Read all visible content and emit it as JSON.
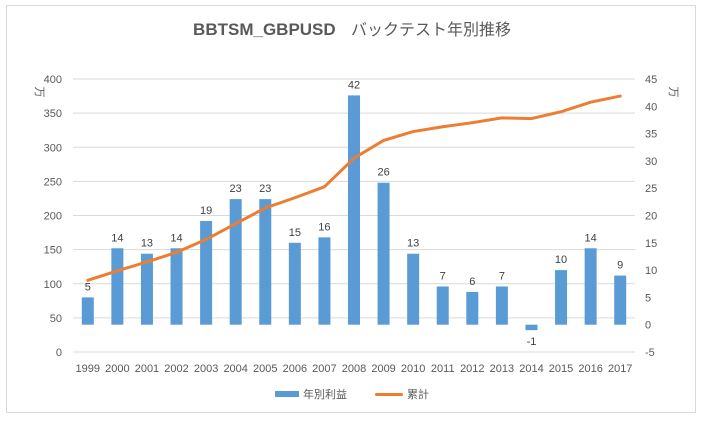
{
  "chart_data": {
    "type": "bar+line",
    "title_en": "BBTSM_GBPUSD",
    "title_ja": "バックテスト年別推移",
    "categories": [
      "1999",
      "2000",
      "2001",
      "2002",
      "2003",
      "2004",
      "2005",
      "2006",
      "2007",
      "2008",
      "2009",
      "2010",
      "2011",
      "2012",
      "2013",
      "2014",
      "2015",
      "2016",
      "2017"
    ],
    "series": [
      {
        "name": "年別利益",
        "type": "bar",
        "axis": "right",
        "color": "#5b9bd5",
        "values": [
          5,
          14,
          13,
          14,
          19,
          23,
          23,
          15,
          16,
          42,
          26,
          13,
          7,
          6,
          7,
          -1,
          10,
          14,
          9
        ],
        "data_labels": [
          "5",
          "14",
          "13",
          "14",
          "19",
          "23",
          "23",
          "15",
          "16",
          "42",
          "26",
          "13",
          "7",
          "6",
          "7",
          "-1",
          "10",
          "14",
          "9"
        ]
      },
      {
        "name": "累計",
        "type": "line",
        "axis": "left",
        "color": "#ed7d31",
        "values": [
          105,
          119,
          132,
          146,
          165,
          188,
          211,
          226,
          242,
          284,
          310,
          323,
          330,
          336,
          343,
          342,
          352,
          366,
          375
        ]
      }
    ],
    "left_axis": {
      "unit": "万",
      "ylim": [
        0,
        400
      ],
      "ticks": [
        "0",
        "50",
        "100",
        "150",
        "200",
        "250",
        "300",
        "350",
        "400"
      ]
    },
    "right_axis": {
      "unit": "万",
      "ylim": [
        -5,
        45
      ],
      "ticks": [
        "-5",
        "0",
        "5",
        "10",
        "15",
        "20",
        "25",
        "30",
        "35",
        "40",
        "45"
      ]
    },
    "grid": true,
    "legend_position": "bottom"
  }
}
